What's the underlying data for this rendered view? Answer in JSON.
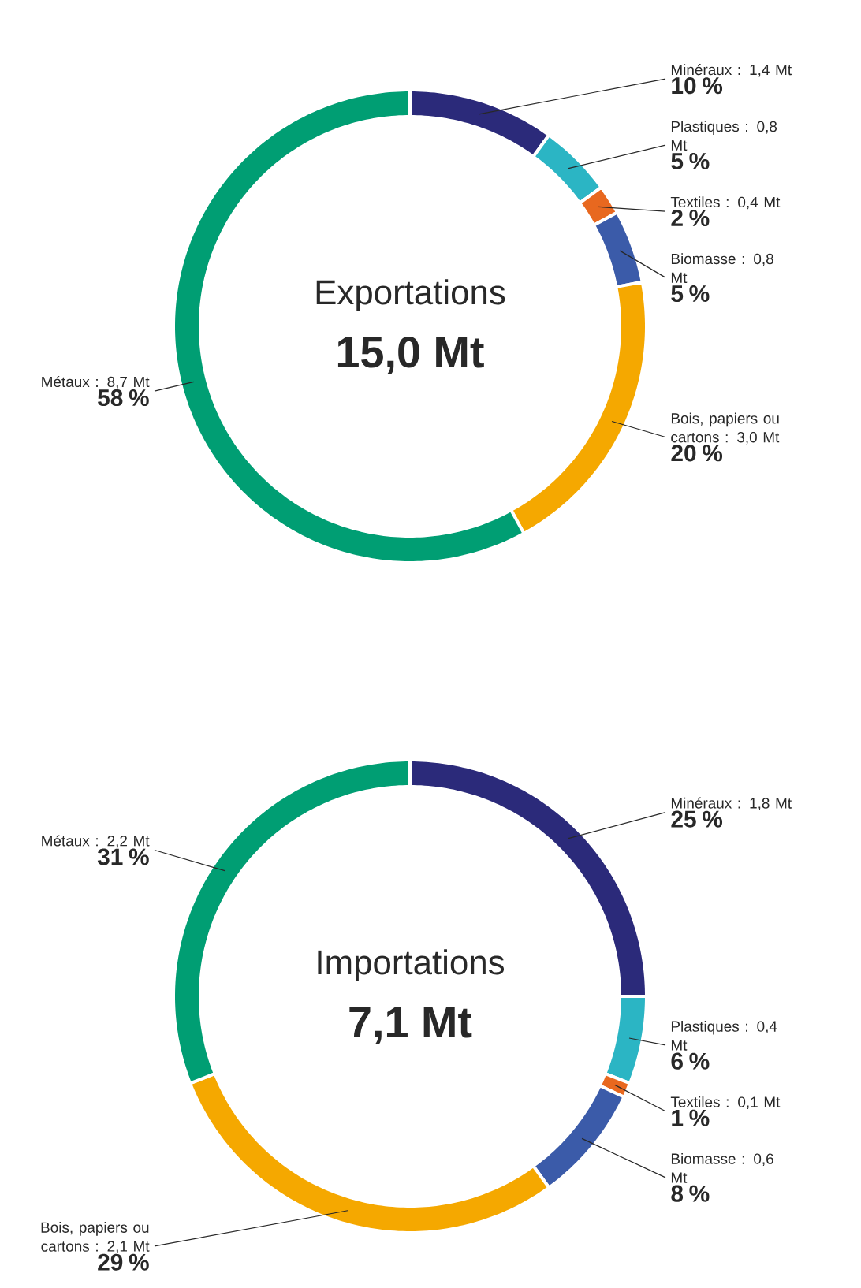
{
  "chart_data": [
    {
      "type": "donut",
      "title": "Exportations",
      "subtitle": "15,0 Mt",
      "categories": [
        "Minéraux : 1,4 Mt",
        "Plastiques : 0,8 Mt",
        "Textiles : 0,4 Mt",
        "Biomasse : 0,8 Mt",
        "Bois, papiers ou cartons : 3,0 Mt",
        "Métaux : 8,7 Mt"
      ],
      "values": [
        10,
        5,
        2,
        5,
        20,
        58
      ],
      "value_labels": [
        "10 %",
        "5 %",
        "2 %",
        "5 %",
        "20 %",
        "58 %"
      ],
      "colors": [
        "#2b2a7a",
        "#2bb5c4",
        "#e8681f",
        "#3b5ba9",
        "#f5a800",
        "#009e73"
      ]
    },
    {
      "type": "donut",
      "title": "Importations",
      "subtitle": "7,1 Mt",
      "categories": [
        "Minéraux : 1,8 Mt",
        "Plastiques : 0,4 Mt",
        "Textiles : 0,1 Mt",
        "Biomasse : 0,6 Mt",
        "Bois, papiers ou cartons : 2,1 Mt",
        "Métaux : 2,2 Mt"
      ],
      "values": [
        25,
        6,
        1,
        8,
        29,
        31
      ],
      "value_labels": [
        "25 %",
        "6 %",
        "1 %",
        "8 %",
        "29 %",
        "31 %"
      ],
      "colors": [
        "#2b2a7a",
        "#2bb5c4",
        "#e8681f",
        "#3b5ba9",
        "#f5a800",
        "#009e73"
      ]
    }
  ]
}
